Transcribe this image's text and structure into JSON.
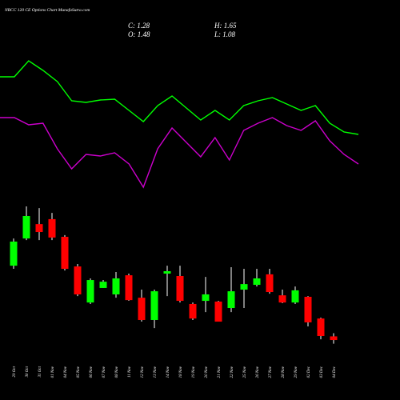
{
  "chart_data": {
    "type": "candlestick",
    "title": "NBCC 120 CE Options Chart MunafaSutra.com",
    "annotations": [
      "C: 1.28",
      "H: 1.65",
      "O: 1.48",
      "L: 1.08"
    ],
    "categories": [
      "29 Oct",
      "30 Oct",
      "31 Oct",
      "01 Nov",
      "04 Nov",
      "05 Nov",
      "06 Nov",
      "07 Nov",
      "08 Nov",
      "11 Nov",
      "12 Nov",
      "13 Nov",
      "14 Nov",
      "18 Nov",
      "19 Nov",
      "20 Nov",
      "21 Nov",
      "22 Nov",
      "25 Nov",
      "26 Nov",
      "27 Nov",
      "28 Nov",
      "29 Nov",
      "02 Dec",
      "03 Dec",
      "04 Dec"
    ],
    "open": [
      5.32,
      6.8,
      7.58,
      7.85,
      6.89,
      5.28,
      3.32,
      4.11,
      3.76,
      4.8,
      3.58,
      2.37,
      4.89,
      4.76,
      3.24,
      3.41,
      3.37,
      3.02,
      4.02,
      4.28,
      4.85,
      3.71,
      3.32,
      3.63,
      2.45,
      1.48
    ],
    "high": [
      6.8,
      8.54,
      8.45,
      8.19,
      6.98,
      5.41,
      4.63,
      4.54,
      4.98,
      4.89,
      4.02,
      4.02,
      5.32,
      5.32,
      3.32,
      4.71,
      3.41,
      5.24,
      5.15,
      5.15,
      5.15,
      4.02,
      4.19,
      3.67,
      2.5,
      1.65
    ],
    "low": [
      5.15,
      6.71,
      6.71,
      6.71,
      5.06,
      3.67,
      3.24,
      4.11,
      3.58,
      3.41,
      2.28,
      1.93,
      3.67,
      3.32,
      2.37,
      2.8,
      2.28,
      2.8,
      3.02,
      4.19,
      3.8,
      3.28,
      3.24,
      2.02,
      1.32,
      1.08
    ],
    "close": [
      6.63,
      8.02,
      7.15,
      6.85,
      5.15,
      3.76,
      4.54,
      4.45,
      4.63,
      3.45,
      2.37,
      3.93,
      5.02,
      3.41,
      2.45,
      3.76,
      2.28,
      3.93,
      4.32,
      4.63,
      3.89,
      3.32,
      3.98,
      2.24,
      1.5,
      1.28
    ],
    "up_color": "#00ff00",
    "down_color": "#ff0000",
    "ylim": [
      0.63,
      8.89
    ],
    "y2lim": [
      0,
      250
    ],
    "series": [
      {
        "color": "#00ff00",
        "axis": "y2",
        "values": [
          154,
          154,
          174,
          162,
          148,
          124,
          122,
          125,
          126,
          112,
          98,
          118,
          130,
          115,
          100,
          112,
          100,
          118,
          124,
          128,
          120,
          112,
          118,
          96,
          85,
          82
        ]
      },
      {
        "color": "#cc00cc",
        "axis": "y2",
        "values": [
          103,
          103,
          94,
          96,
          64,
          39,
          57,
          55,
          59,
          45,
          16,
          64,
          90,
          72,
          54,
          78,
          50,
          87,
          96,
          103,
          93,
          87,
          99,
          74,
          57,
          45
        ]
      }
    ]
  }
}
